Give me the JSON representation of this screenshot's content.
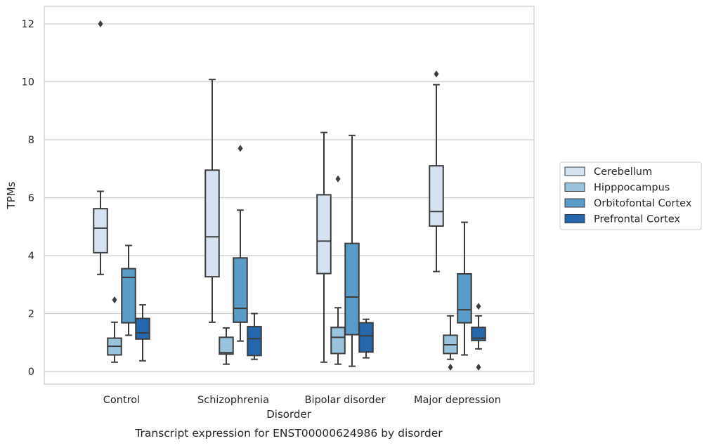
{
  "chart_data": {
    "type": "boxplot",
    "title": "Transcript expression for ENST00000624986 by disorder",
    "xlabel": "Disorder",
    "ylabel": "TPMs",
    "ylim": [
      -0.45,
      12.55
    ],
    "yticks": [
      0,
      2,
      4,
      6,
      8,
      10,
      12
    ],
    "grid": "y",
    "legend_position": "right",
    "categories": [
      "Control",
      "Schizophrenia",
      "Bipolar disorder",
      "Major depression"
    ],
    "series": [
      {
        "name": "Cerebellum",
        "color": "#d4e2f1",
        "boxes": [
          {
            "whisker_low": 3.35,
            "q1": 4.1,
            "median": 4.95,
            "q3": 5.62,
            "whisker_high": 6.22,
            "outliers": [
              12.0
            ]
          },
          {
            "whisker_low": 1.7,
            "q1": 3.27,
            "median": 4.65,
            "q3": 6.95,
            "whisker_high": 10.08,
            "outliers": []
          },
          {
            "whisker_low": 0.32,
            "q1": 3.38,
            "median": 4.5,
            "q3": 6.1,
            "whisker_high": 8.25,
            "outliers": []
          },
          {
            "whisker_low": 3.45,
            "q1": 5.02,
            "median": 5.52,
            "q3": 7.1,
            "whisker_high": 9.9,
            "outliers": [
              10.27
            ]
          }
        ]
      },
      {
        "name": "Hipppocampus",
        "color": "#9ac3de",
        "boxes": [
          {
            "whisker_low": 0.32,
            "q1": 0.57,
            "median": 0.87,
            "q3": 1.15,
            "whisker_high": 1.7,
            "outliers": [
              2.47
            ]
          },
          {
            "whisker_low": 0.25,
            "q1": 0.6,
            "median": 0.65,
            "q3": 1.18,
            "whisker_high": 1.5,
            "outliers": []
          },
          {
            "whisker_low": 0.25,
            "q1": 0.62,
            "median": 1.18,
            "q3": 1.52,
            "whisker_high": 2.2,
            "outliers": [
              6.65
            ]
          },
          {
            "whisker_low": 0.42,
            "q1": 0.62,
            "median": 0.92,
            "q3": 1.25,
            "whisker_high": 1.92,
            "outliers": [
              0.15
            ]
          }
        ]
      },
      {
        "name": "Orbitofontal Cortex",
        "color": "#5a9bc8",
        "boxes": [
          {
            "whisker_low": 1.25,
            "q1": 1.68,
            "median": 3.25,
            "q3": 3.55,
            "whisker_high": 4.35,
            "outliers": []
          },
          {
            "whisker_low": 1.05,
            "q1": 1.7,
            "median": 2.18,
            "q3": 3.92,
            "whisker_high": 5.57,
            "outliers": [
              7.7
            ]
          },
          {
            "whisker_low": 0.18,
            "q1": 1.27,
            "median": 2.57,
            "q3": 4.42,
            "whisker_high": 8.15,
            "outliers": []
          },
          {
            "whisker_low": 0.57,
            "q1": 1.68,
            "median": 2.13,
            "q3": 3.37,
            "whisker_high": 5.15,
            "outliers": []
          }
        ]
      },
      {
        "name": "Prefrontal Cortex",
        "color": "#2566ac",
        "boxes": [
          {
            "whisker_low": 0.37,
            "q1": 1.12,
            "median": 1.33,
            "q3": 1.83,
            "whisker_high": 2.3,
            "outliers": []
          },
          {
            "whisker_low": 0.42,
            "q1": 0.55,
            "median": 1.13,
            "q3": 1.55,
            "whisker_high": 2.0,
            "outliers": []
          },
          {
            "whisker_low": 0.47,
            "q1": 0.67,
            "median": 1.23,
            "q3": 1.68,
            "whisker_high": 1.8,
            "outliers": []
          },
          {
            "whisker_low": 0.78,
            "q1": 1.07,
            "median": 1.15,
            "q3": 1.52,
            "whisker_high": 1.92,
            "outliers": [
              2.25,
              0.15
            ]
          }
        ]
      }
    ]
  }
}
